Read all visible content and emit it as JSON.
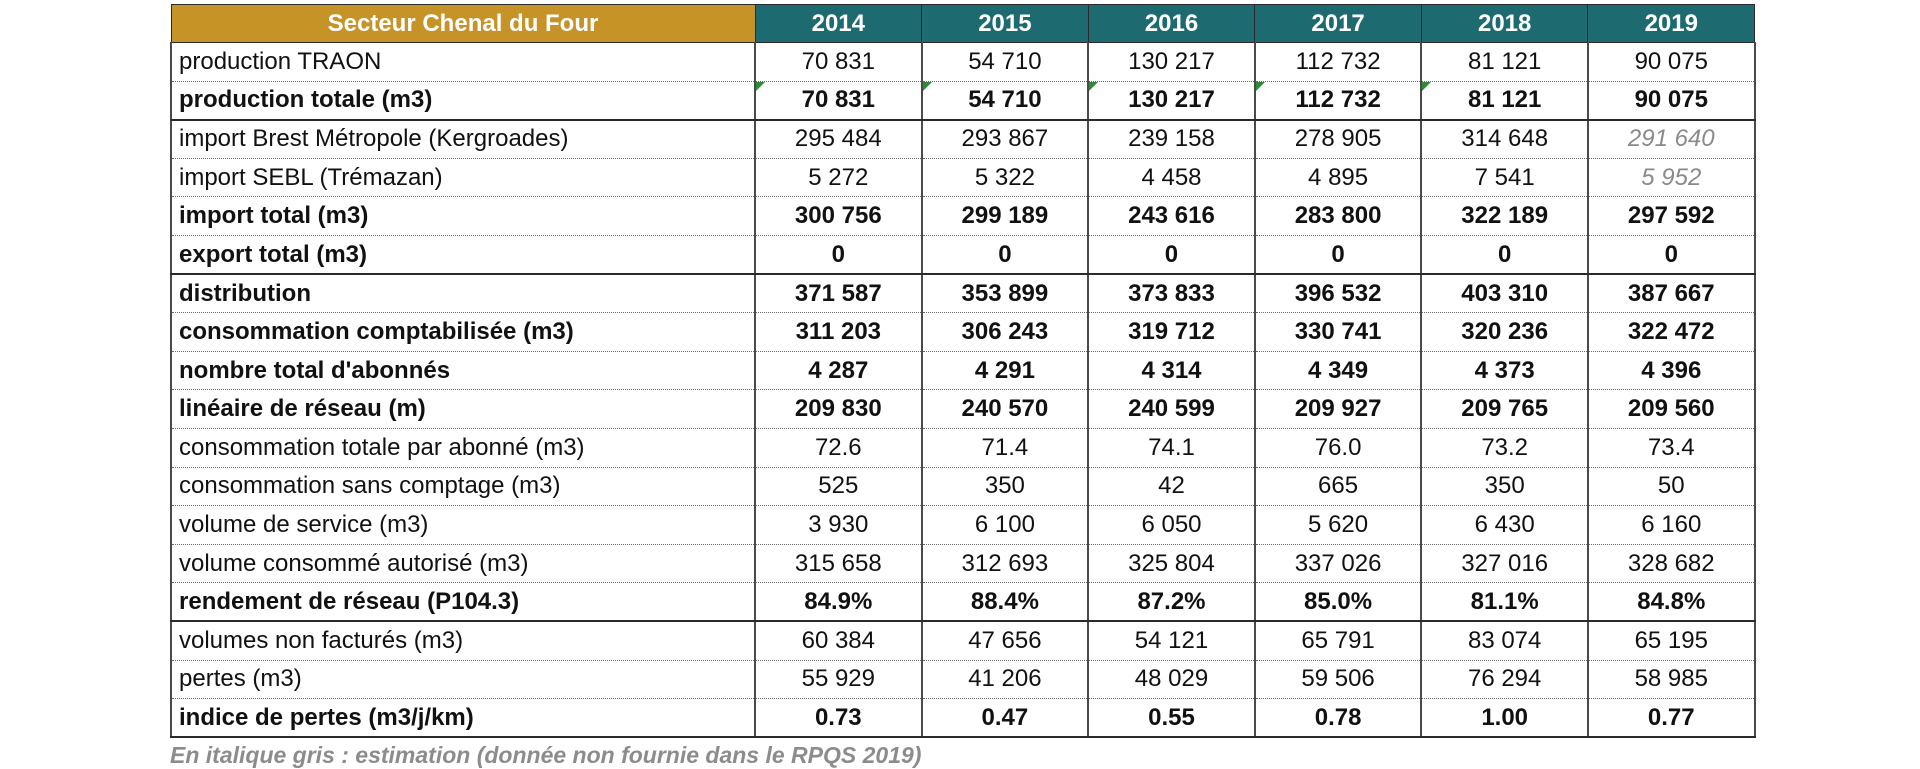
{
  "table": {
    "corner_header": "Secteur Chenal du Four",
    "years": [
      "2014",
      "2015",
      "2016",
      "2017",
      "2018",
      "2019"
    ],
    "rows": [
      {
        "label": "production TRAON",
        "values": [
          "70 831",
          "54 710",
          "130 217",
          "112 732",
          "81 121",
          "90 075"
        ]
      },
      {
        "label": "production totale (m3)",
        "values": [
          "70 831",
          "54 710",
          "130 217",
          "112 732",
          "81 121",
          "90 075"
        ]
      },
      {
        "label": "import Brest Métropole (Kergroades)",
        "values": [
          "295 484",
          "293 867",
          "239 158",
          "278 905",
          "314 648",
          "291 640"
        ]
      },
      {
        "label": "import SEBL (Trémazan)",
        "values": [
          "5 272",
          "5 322",
          "4 458",
          "4 895",
          "7 541",
          "5 952"
        ]
      },
      {
        "label": "import total (m3)",
        "values": [
          "300 756",
          "299 189",
          "243 616",
          "283 800",
          "322 189",
          "297 592"
        ]
      },
      {
        "label": "export total (m3)",
        "values": [
          "0",
          "0",
          "0",
          "0",
          "0",
          "0"
        ]
      },
      {
        "label": "distribution",
        "values": [
          "371 587",
          "353 899",
          "373 833",
          "396 532",
          "403 310",
          "387 667"
        ]
      },
      {
        "label": "consommation comptabilisée (m3)",
        "values": [
          "311 203",
          "306 243",
          "319 712",
          "330 741",
          "320 236",
          "322 472"
        ]
      },
      {
        "label": "nombre total d'abonnés",
        "values": [
          "4 287",
          "4 291",
          "4 314",
          "4 349",
          "4 373",
          "4 396"
        ]
      },
      {
        "label": "linéaire de réseau (m)",
        "values": [
          "209 830",
          "240 570",
          "240 599",
          "209 927",
          "209 765",
          "209 560"
        ]
      },
      {
        "label": "consommation totale par abonné (m3)",
        "values": [
          "72.6",
          "71.4",
          "74.1",
          "76.0",
          "73.2",
          "73.4"
        ]
      },
      {
        "label": "consommation sans comptage (m3)",
        "values": [
          "525",
          "350",
          "42",
          "665",
          "350",
          "50"
        ]
      },
      {
        "label": "volume de service (m3)",
        "values": [
          "3 930",
          "6 100",
          "6 050",
          "5 620",
          "6 430",
          "6 160"
        ]
      },
      {
        "label": "volume consommé autorisé (m3)",
        "values": [
          "315 658",
          "312 693",
          "325 804",
          "337 026",
          "327 016",
          "328 682"
        ]
      },
      {
        "label": "rendement de réseau (P104.3)",
        "values": [
          "84.9%",
          "88.4%",
          "87.2%",
          "85.0%",
          "81.1%",
          "84.8%"
        ]
      },
      {
        "label": "volumes non facturés (m3)",
        "values": [
          "60 384",
          "47 656",
          "54 121",
          "65 791",
          "83 074",
          "65 195"
        ]
      },
      {
        "label": "pertes (m3)",
        "values": [
          "55 929",
          "41 206",
          "48 029",
          "59 506",
          "76 294",
          "58 985"
        ]
      },
      {
        "label": "indice de pertes (m3/j/km)",
        "values": [
          "0.73",
          "0.47",
          "0.55",
          "0.78",
          "1.00",
          "0.77"
        ]
      }
    ]
  },
  "footnote": "En italique gris : estimation (donnée non fournie dans le RPQS 2019)",
  "colors": {
    "corner_header_bg": "#c69327",
    "year_header_bg": "#1d6a70",
    "estimate_text": "#8a8a8a",
    "cell_flag": "#2e8b3a"
  }
}
